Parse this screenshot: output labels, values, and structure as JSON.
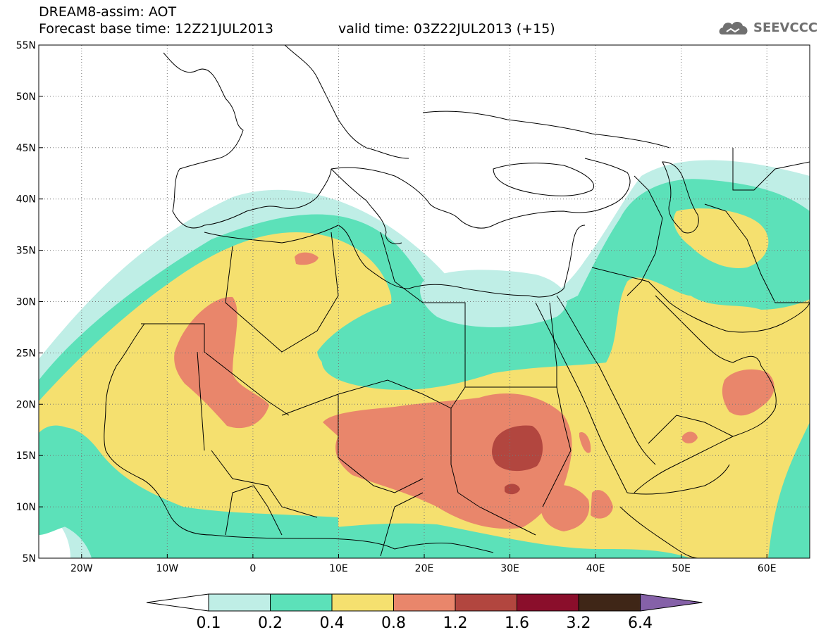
{
  "header": {
    "title": "DREAM8-assim: AOT",
    "base_time": "Forecast base time: 12Z21JUL2013",
    "valid_time": "valid time: 03Z22JUL2013 (+15)",
    "logo_text": "SEEVCCC"
  },
  "map": {
    "lon_range": [
      -25,
      65
    ],
    "lat_range": [
      5,
      55
    ],
    "lat_ticks": [
      "55N",
      "50N",
      "45N",
      "40N",
      "35N",
      "30N",
      "25N",
      "20N",
      "15N",
      "10N",
      "5N"
    ],
    "lon_ticks": [
      "20W",
      "10W",
      "0",
      "10E",
      "20E",
      "30E",
      "40E",
      "50E",
      "60E"
    ],
    "grid": "dotted"
  },
  "legend": {
    "levels": [
      "0.1",
      "0.2",
      "0.4",
      "0.8",
      "1.2",
      "1.6",
      "3.2",
      "6.4"
    ],
    "colors": [
      "#ffffff",
      "#bfeee6",
      "#5ce1b9",
      "#f5e06f",
      "#e9866b",
      "#b2463f",
      "#8a0e2b",
      "#3f2617",
      "#8561a8"
    ]
  }
}
